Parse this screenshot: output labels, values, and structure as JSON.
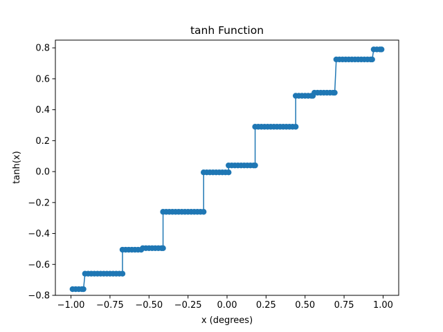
{
  "chart_data": {
    "type": "line",
    "title": "tanh Function",
    "xlabel": "x (degrees)",
    "ylabel": "tanh(x)",
    "xlim": [
      -1.1,
      1.1
    ],
    "ylim": [
      -0.8,
      0.85
    ],
    "grid": false,
    "color": "#1f77b4",
    "marker": "circle",
    "xticks": [
      -1.0,
      -0.75,
      -0.5,
      -0.25,
      0.0,
      0.25,
      0.5,
      0.75,
      1.0
    ],
    "xtick_labels": [
      "−1.00",
      "−0.75",
      "−0.50",
      "−0.25",
      "0.00",
      "0.25",
      "0.50",
      "0.75",
      "1.00"
    ],
    "yticks": [
      -0.8,
      -0.6,
      -0.4,
      -0.2,
      0.0,
      0.2,
      0.4,
      0.6,
      0.8
    ],
    "ytick_labels": [
      "−0.8",
      "−0.6",
      "−0.4",
      "−0.2",
      "0.0",
      "0.2",
      "0.4",
      "0.6",
      "0.8"
    ],
    "steps": [
      {
        "x_start": -0.99,
        "x_end": -0.92,
        "y": -0.76
      },
      {
        "x_start": -0.91,
        "x_end": -0.67,
        "y": -0.66
      },
      {
        "x_start": -0.67,
        "x_end": -0.55,
        "y": -0.505
      },
      {
        "x_start": -0.54,
        "x_end": -0.41,
        "y": -0.495
      },
      {
        "x_start": -0.41,
        "x_end": -0.15,
        "y": -0.26
      },
      {
        "x_start": -0.15,
        "x_end": 0.01,
        "y": -0.005
      },
      {
        "x_start": 0.01,
        "x_end": 0.18,
        "y": 0.04
      },
      {
        "x_start": 0.18,
        "x_end": 0.44,
        "y": 0.29
      },
      {
        "x_start": 0.44,
        "x_end": 0.55,
        "y": 0.49
      },
      {
        "x_start": 0.56,
        "x_end": 0.69,
        "y": 0.51
      },
      {
        "x_start": 0.7,
        "x_end": 0.93,
        "y": 0.725
      },
      {
        "x_start": 0.94,
        "x_end": 0.99,
        "y": 0.79
      }
    ]
  }
}
